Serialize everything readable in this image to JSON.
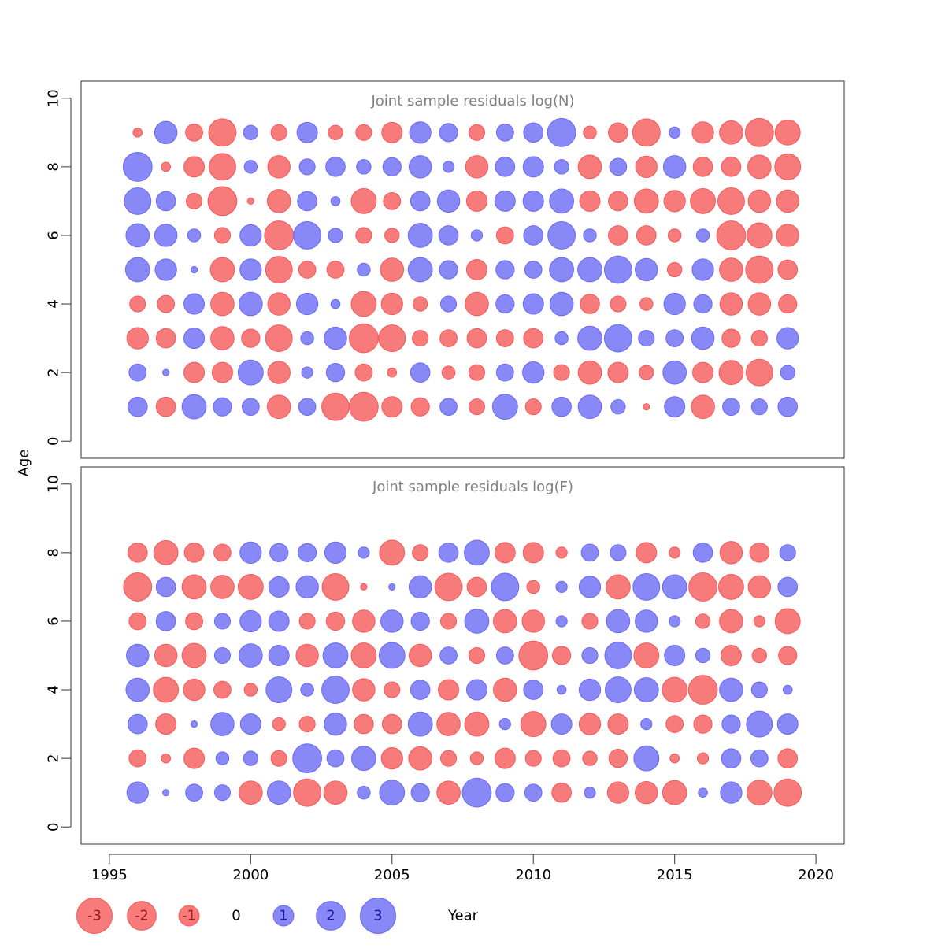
{
  "chart_data": {
    "type": "scatter",
    "subtype": "bubble",
    "xlabel": "Year",
    "ylabel": "Age",
    "x_ticks": [
      1995,
      2000,
      2005,
      2010,
      2015,
      2020
    ],
    "y_ticks": [
      0,
      2,
      4,
      6,
      8,
      10
    ],
    "xlim": [
      1994,
      2021
    ],
    "ylim": [
      -0.5,
      10.5
    ],
    "colors": {
      "positive": "#6a6af5",
      "negative": "#f55a5a",
      "title": "#808080"
    },
    "legend": {
      "position": "bottom",
      "entries": [
        {
          "label": "-3",
          "value": -3
        },
        {
          "label": "-2",
          "value": -2
        },
        {
          "label": "-1",
          "value": -1
        },
        {
          "label": "0",
          "value": 0
        },
        {
          "label": "1",
          "value": 1
        },
        {
          "label": "2",
          "value": 2
        },
        {
          "label": "3",
          "value": 3
        }
      ]
    },
    "panels": [
      {
        "title": "Joint sample residuals log(N)",
        "years": [
          1996,
          1997,
          1998,
          1999,
          2000,
          2001,
          2002,
          2003,
          2004,
          2005,
          2006,
          2007,
          2008,
          2009,
          2010,
          2011,
          2012,
          2013,
          2014,
          2015,
          2016,
          2017,
          2018,
          2019
        ],
        "residuals_by_age": {
          "1": [
            0.9,
            -0.9,
            1.4,
            0.8,
            0.7,
            -1.3,
            0.7,
            -1.8,
            -2.0,
            -1.0,
            -0.8,
            0.7,
            -0.6,
            1.5,
            -0.6,
            0.9,
            1.3,
            0.5,
            -0.1,
            1.0,
            -1.3,
            0.7,
            0.6,
            0.9
          ],
          "2": [
            0.7,
            0.1,
            -1.0,
            -1.0,
            1.5,
            -1.2,
            0.3,
            0.8,
            -0.7,
            -0.2,
            0.9,
            -0.4,
            -0.6,
            0.7,
            1.1,
            -0.6,
            -1.3,
            -1.0,
            -0.5,
            1.3,
            -1.0,
            -1.4,
            -1.7,
            0.5
          ],
          "3": [
            -1.1,
            -0.9,
            1.0,
            -1.3,
            -0.8,
            -1.7,
            0.4,
            1.2,
            -2.0,
            -1.7,
            -0.6,
            -0.7,
            -0.9,
            -0.7,
            -0.9,
            0.4,
            1.4,
            1.8,
            0.6,
            0.7,
            1.2,
            -0.8,
            -0.6,
            1.1
          ],
          "4": [
            -0.6,
            -0.7,
            1.0,
            -1.3,
            1.3,
            -1.2,
            1.1,
            0.2,
            -1.5,
            -1.1,
            -0.5,
            0.6,
            -1.3,
            0.8,
            1.0,
            1.3,
            -0.9,
            -0.6,
            -0.4,
            1.1,
            0.8,
            -1.2,
            -1.2,
            -0.8
          ],
          "5": [
            1.4,
            1.1,
            0.1,
            -1.4,
            1.1,
            -1.7,
            -0.7,
            -0.7,
            0.4,
            -1.3,
            1.4,
            0.8,
            -1.0,
            0.8,
            0.7,
            1.4,
            1.4,
            1.8,
            1.2,
            -0.5,
            1.1,
            -1.3,
            -1.8,
            -0.9
          ],
          "6": [
            1.3,
            1.2,
            0.4,
            -0.6,
            1.1,
            -2.0,
            1.8,
            0.5,
            -0.6,
            -0.5,
            1.4,
            0.9,
            0.3,
            -0.7,
            0.9,
            1.8,
            0.4,
            -0.9,
            -0.9,
            -0.4,
            0.4,
            -2.0,
            -1.5,
            -1.2
          ],
          "7": [
            1.7,
            0.9,
            -0.6,
            -2.0,
            -0.1,
            -1.3,
            0.9,
            0.2,
            -1.5,
            -0.7,
            0.9,
            1.2,
            -1.0,
            1.0,
            1.0,
            1.4,
            -1.0,
            -0.9,
            -1.4,
            -1.1,
            -1.5,
            -1.7,
            -1.2,
            -1.2
          ],
          "8": [
            2.0,
            -0.2,
            -1.0,
            -1.7,
            0.4,
            -1.2,
            0.6,
            0.9,
            0.5,
            0.8,
            1.2,
            0.3,
            -1.2,
            0.9,
            1.0,
            0.5,
            -1.3,
            0.7,
            -1.1,
            1.2,
            -0.9,
            -0.9,
            -1.3,
            -1.6
          ],
          "9": [
            -0.2,
            1.2,
            -0.7,
            -1.8,
            0.5,
            -0.6,
            1.0,
            -0.5,
            -0.6,
            -1.0,
            1.1,
            0.8,
            -0.6,
            0.7,
            0.9,
            1.9,
            -0.4,
            -0.9,
            -1.8,
            0.3,
            -1.1,
            -1.3,
            -1.9,
            -1.5
          ]
        }
      },
      {
        "title": "Joint sample residuals log(F)",
        "years": [
          1996,
          1997,
          1998,
          1999,
          2000,
          2001,
          2002,
          2003,
          2004,
          2005,
          2006,
          2007,
          2008,
          2009,
          2010,
          2011,
          2012,
          2013,
          2014,
          2015,
          2016,
          2017,
          2018,
          2019
        ],
        "residuals_by_age": {
          "1": [
            1.1,
            0.1,
            0.7,
            0.6,
            -1.3,
            1.3,
            -1.8,
            -1.3,
            0.4,
            1.5,
            0.8,
            -1.3,
            2.0,
            0.8,
            0.7,
            -0.9,
            0.3,
            -1.1,
            -1.2,
            -1.4,
            0.2,
            1.1,
            -1.5,
            -1.8
          ],
          "2": [
            -0.7,
            -0.2,
            -1.0,
            0.4,
            0.5,
            -0.6,
            2.0,
            0.7,
            1.4,
            -1.1,
            -1.3,
            -0.6,
            -0.4,
            -1.0,
            -0.6,
            -0.7,
            -0.5,
            -0.8,
            1.5,
            -0.2,
            -0.3,
            0.9,
            0.7,
            -0.9
          ],
          "3": [
            0.9,
            -1.0,
            0.1,
            1.3,
            1.0,
            -0.4,
            -0.6,
            1.2,
            -0.9,
            -0.9,
            1.4,
            -1.3,
            -1.4,
            0.3,
            -1.5,
            1.0,
            -1.1,
            -1.0,
            0.3,
            -0.7,
            -0.8,
            0.8,
            1.6,
            1.0
          ],
          "4": [
            1.3,
            -1.5,
            -1.1,
            -0.7,
            -0.4,
            1.6,
            0.4,
            1.8,
            -1.2,
            -0.6,
            0.9,
            -1.0,
            1.0,
            -1.3,
            0.9,
            0.2,
            1.1,
            1.6,
            1.4,
            -1.5,
            -2.0,
            1.3,
            0.6,
            0.2
          ],
          "5": [
            1.2,
            -1.2,
            -1.4,
            0.6,
            1.3,
            1.0,
            -1.2,
            1.5,
            -1.5,
            1.6,
            -1.2,
            0.7,
            -0.6,
            0.7,
            -2.0,
            -0.8,
            0.6,
            1.7,
            -1.5,
            1.0,
            0.5,
            -1.0,
            -0.5,
            -0.8
          ],
          "6": [
            -0.7,
            0.9,
            -0.7,
            0.6,
            1.1,
            1.0,
            -0.6,
            -0.8,
            -1.2,
            1.2,
            0.8,
            -0.6,
            1.4,
            -1.3,
            -1.2,
            0.3,
            -0.6,
            1.3,
            1.2,
            0.3,
            -0.5,
            -1.3,
            -0.3,
            -1.5
          ],
          "7": [
            -1.9,
            0.9,
            -1.4,
            -1.3,
            -1.5,
            1.0,
            1.2,
            -1.7,
            -0.1,
            0.1,
            1.2,
            -1.8,
            -0.9,
            1.8,
            -0.4,
            0.3,
            1.1,
            -1.4,
            1.7,
            1.4,
            -1.9,
            -1.5,
            -1.2,
            0.9
          ],
          "8": [
            -0.9,
            -1.4,
            -0.9,
            -0.7,
            1.1,
            0.8,
            0.8,
            1.1,
            0.3,
            -1.5,
            -0.6,
            0.9,
            1.5,
            -1.0,
            -1.0,
            -0.3,
            0.7,
            0.6,
            -1.0,
            -0.3,
            0.9,
            -1.2,
            -0.9,
            0.6
          ]
        }
      }
    ]
  }
}
